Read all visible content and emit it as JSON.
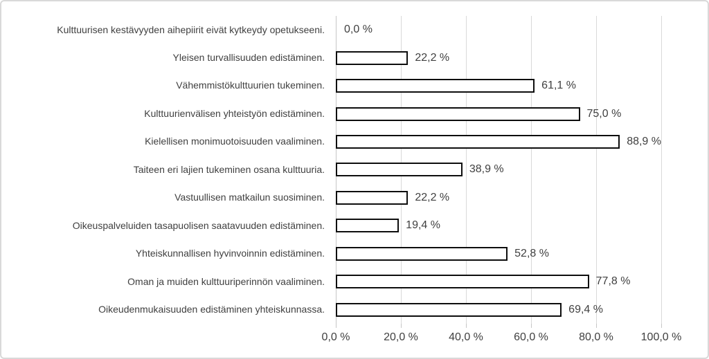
{
  "chart_data": {
    "type": "bar",
    "orientation": "horizontal",
    "title": "",
    "xlabel": "",
    "ylabel": "",
    "xlim": [
      0,
      100
    ],
    "grid": true,
    "legend": false,
    "categories": [
      "Kulttuurisen kestävyyden aihepiirit eivät kytkeydy opetukseeni.",
      "Yleisen turvallisuuden edistäminen.",
      "Vähemmistökulttuurien tukeminen.",
      "Kulttuurienvälisen yhteistyön edistäminen.",
      "Kielellisen monimuotoisuuden vaaliminen.",
      "Taiteen eri lajien tukeminen osana kulttuuria.",
      "Vastuullisen matkailun suosiminen.",
      "Oikeuspalveluiden tasapuolisen saatavuuden edistäminen.",
      "Yhteiskunnallisen hyvinvoinnin edistäminen.",
      "Oman ja muiden kulttuuriperinnön vaaliminen.",
      "Oikeudenmukaisuuden edistäminen yhteiskunnassa."
    ],
    "values": [
      0.0,
      22.2,
      61.1,
      75.0,
      88.9,
      38.9,
      22.2,
      19.4,
      52.8,
      77.8,
      69.4
    ],
    "value_labels": [
      "0,0 %",
      "22,2 %",
      "61,1 %",
      "75,0 %",
      "88,9 %",
      "38,9 %",
      "22,2 %",
      "19,4 %",
      "52,8 %",
      "77,8 %",
      "69,4 %"
    ],
    "x_tick_values": [
      0,
      20,
      40,
      60,
      80,
      100
    ],
    "x_tick_labels": [
      "0,0 %",
      "20,0 %",
      "40,0 %",
      "60,0 %",
      "80,0 %",
      "100,0 %"
    ],
    "colors": {
      "bar_fill": "#ffffff",
      "bar_border": "#0d0d0d",
      "gridline": "#d9d9d9",
      "axis_line": "#c6c6c6",
      "text": "#3f3f3f",
      "frame_border": "#d9d9d9",
      "background": "#ffffff"
    }
  }
}
